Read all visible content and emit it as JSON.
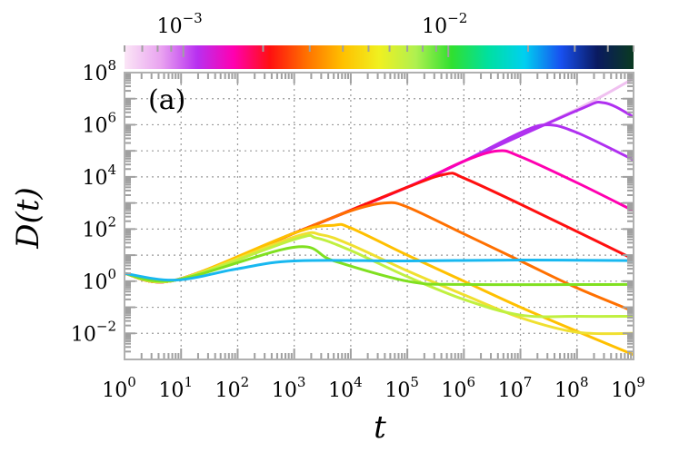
{
  "chart_data": {
    "type": "line",
    "title": "",
    "panel_label": "(a)",
    "xlabel": "t",
    "ylabel": "D(t)",
    "x_scale": "log",
    "y_scale": "log",
    "xlim": [
      1,
      1000000000
    ],
    "ylim": [
      0.001,
      100000000
    ],
    "grid": true,
    "x_ticks": [
      {
        "base": "10",
        "exp": "0"
      },
      {
        "base": "10",
        "exp": "1"
      },
      {
        "base": "10",
        "exp": "2"
      },
      {
        "base": "10",
        "exp": "3"
      },
      {
        "base": "10",
        "exp": "4"
      },
      {
        "base": "10",
        "exp": "5"
      },
      {
        "base": "10",
        "exp": "6"
      },
      {
        "base": "10",
        "exp": "7"
      },
      {
        "base": "10",
        "exp": "8"
      },
      {
        "base": "10",
        "exp": "9"
      }
    ],
    "y_ticks": [
      {
        "base": "10",
        "exp": "−2",
        "value": 0.01
      },
      {
        "base": "10",
        "exp": "0",
        "value": 1
      },
      {
        "base": "10",
        "exp": "2",
        "value": 100
      },
      {
        "base": "10",
        "exp": "4",
        "value": 10000
      },
      {
        "base": "10",
        "exp": "6",
        "value": 1000000
      },
      {
        "base": "10",
        "exp": "8",
        "value": 100000000
      }
    ],
    "colorbar": {
      "scale": "log",
      "range": [
        0.0006,
        0.05
      ],
      "ticks": [
        {
          "base": "10",
          "exp": "−3",
          "value": 0.001
        },
        {
          "base": "10",
          "exp": "−2",
          "value": 0.01
        }
      ],
      "colors": [
        "#fbe6f6",
        "#e9a3f0",
        "#b830f0",
        "#ff00b0",
        "#ff1010",
        "#ff7000",
        "#ffc000",
        "#f0f020",
        "#b0f050",
        "#30e030",
        "#00e0a0",
        "#00d0f0",
        "#1850f0",
        "#0a1a60",
        "#0a3a20"
      ]
    },
    "series": [
      {
        "color": "#f0c0f0",
        "values": [
          [
            1,
            2
          ],
          [
            8,
            1.1
          ],
          [
            1000,
            70
          ],
          [
            100000,
            4000
          ],
          [
            1000000,
            40000
          ],
          [
            100000000,
            4000000
          ],
          [
            1000000000,
            60000000
          ]
        ]
      },
      {
        "color": "#b030f0",
        "values": [
          [
            1,
            2
          ],
          [
            8,
            1.1
          ],
          [
            1000,
            70
          ],
          [
            100000,
            4000
          ],
          [
            1000000,
            40000
          ],
          [
            100000000,
            3500000
          ],
          [
            300000000,
            7000000
          ],
          [
            1000000000,
            2000000
          ]
        ]
      },
      {
        "color": "#b030f0",
        "values": [
          [
            1,
            2
          ],
          [
            8,
            1.1
          ],
          [
            1000,
            70
          ],
          [
            100000,
            4000
          ],
          [
            1000000,
            40000
          ],
          [
            10000000,
            500000
          ],
          [
            30000000,
            1000000
          ],
          [
            100000000,
            500000
          ],
          [
            1000000000,
            45000
          ]
        ]
      },
      {
        "color": "#ff00b0",
        "values": [
          [
            1,
            2
          ],
          [
            8,
            1.1
          ],
          [
            1000,
            70
          ],
          [
            100000,
            4000
          ],
          [
            1000000,
            40000
          ],
          [
            4000000,
            100000
          ],
          [
            10000000,
            60000
          ],
          [
            100000000,
            6000
          ],
          [
            1000000000,
            500
          ]
        ]
      },
      {
        "color": "#ff1010",
        "values": [
          [
            1,
            2
          ],
          [
            8,
            1.1
          ],
          [
            1000,
            70
          ],
          [
            100000,
            4000
          ],
          [
            500000,
            13000
          ],
          [
            1000000,
            9000
          ],
          [
            10000000,
            900
          ],
          [
            100000000,
            80
          ],
          [
            1000000000,
            7
          ]
        ]
      },
      {
        "color": "#ff7000",
        "values": [
          [
            1,
            2
          ],
          [
            8,
            1.1
          ],
          [
            1000,
            70
          ],
          [
            10000,
            500
          ],
          [
            40000,
            1000
          ],
          [
            100000,
            700
          ],
          [
            1000000,
            65
          ],
          [
            10000000,
            6
          ],
          [
            100000000,
            0.55
          ],
          [
            1000000000,
            0.07
          ]
        ]
      },
      {
        "color": "#ffc000",
        "values": [
          [
            1,
            2
          ],
          [
            8,
            1.1
          ],
          [
            1000,
            70
          ],
          [
            5000,
            140
          ],
          [
            10000,
            110
          ],
          [
            100000,
            10
          ],
          [
            1000000,
            1
          ],
          [
            10000000,
            0.1
          ],
          [
            100000000,
            0.012
          ],
          [
            1000000000,
            0.0015
          ]
        ]
      },
      {
        "color": "#f0e030",
        "values": [
          [
            1,
            2
          ],
          [
            8,
            1.1
          ],
          [
            1000,
            50
          ],
          [
            3000,
            60
          ],
          [
            10000,
            25
          ],
          [
            100000,
            2.5
          ],
          [
            1000000,
            0.3
          ],
          [
            10000000,
            0.04
          ],
          [
            100000000,
            0.011
          ],
          [
            1000000000,
            0.01
          ]
        ]
      },
      {
        "color": "#c0f040",
        "values": [
          [
            1,
            2
          ],
          [
            8,
            1.1
          ],
          [
            1000,
            40
          ],
          [
            2500,
            45
          ],
          [
            10000,
            15
          ],
          [
            100000,
            1.5
          ],
          [
            1000000,
            0.2
          ],
          [
            10000000,
            0.05
          ],
          [
            100000000,
            0.045
          ],
          [
            1000000000,
            0.045
          ]
        ]
      },
      {
        "color": "#80e020",
        "values": [
          [
            1,
            2
          ],
          [
            8,
            1.1
          ],
          [
            1000,
            20
          ],
          [
            5000,
            6
          ],
          [
            100000,
            1
          ],
          [
            1000000,
            0.75
          ],
          [
            1000000000,
            0.75
          ]
        ]
      },
      {
        "color": "#18b8f0",
        "values": [
          [
            1,
            2
          ],
          [
            8,
            1.1
          ],
          [
            100,
            3
          ],
          [
            1000,
            6
          ],
          [
            100000,
            6
          ],
          [
            10000000,
            6.5
          ],
          [
            1000000000,
            6.2
          ]
        ]
      }
    ]
  }
}
